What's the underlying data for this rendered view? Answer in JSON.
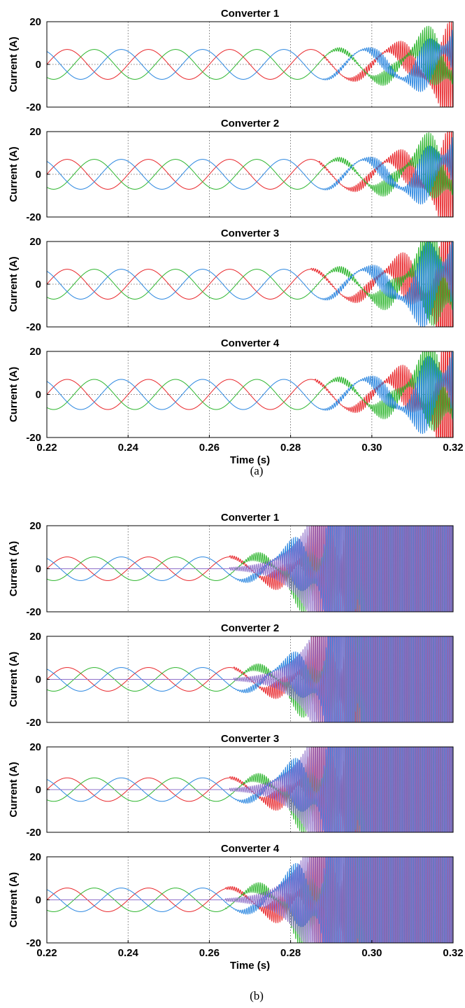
{
  "chart_data": [
    {
      "type": "line",
      "caption": "(a)",
      "title": "Converter 1",
      "xlabel": "",
      "ylabel": "Current (A)",
      "xlim": [
        0.22,
        0.32
      ],
      "ylim": [
        -20,
        20
      ],
      "xticks": [],
      "yticks": [
        "20",
        "0",
        "-20"
      ],
      "grid_x": [
        0.24,
        0.26,
        0.28,
        0.3
      ],
      "zero_line": true,
      "series": [
        {
          "color": "#e8262a",
          "amp": 7,
          "phase_deg": 0,
          "instab_start": 0.288,
          "instab_tau": 0.0085,
          "ripple_freq": 2000
        },
        {
          "color": "#2db52d",
          "amp": 7,
          "phase_deg": -120,
          "instab_start": 0.288,
          "instab_tau": 0.0085,
          "ripple_freq": 2000
        },
        {
          "color": "#2a86e0",
          "amp": 7,
          "phase_deg": 120,
          "instab_start": 0.288,
          "instab_tau": 0.0085,
          "ripple_freq": 2000
        }
      ]
    },
    {
      "type": "line",
      "title": "Converter 2",
      "xlabel": "",
      "ylabel": "Current (A)",
      "xlim": [
        0.22,
        0.32
      ],
      "ylim": [
        -20,
        20
      ],
      "xticks": [],
      "yticks": [
        "20",
        "0",
        "-20"
      ],
      "grid_x": [
        0.24,
        0.26,
        0.28,
        0.3
      ],
      "zero_line": true,
      "series": [
        {
          "color": "#e8262a",
          "amp": 7,
          "phase_deg": 0,
          "instab_start": 0.287,
          "instab_tau": 0.0085,
          "ripple_freq": 2000
        },
        {
          "color": "#2db52d",
          "amp": 7,
          "phase_deg": -120,
          "instab_start": 0.287,
          "instab_tau": 0.0085,
          "ripple_freq": 2000
        },
        {
          "color": "#2a86e0",
          "amp": 7,
          "phase_deg": 120,
          "instab_start": 0.287,
          "instab_tau": 0.0085,
          "ripple_freq": 2000
        }
      ]
    },
    {
      "type": "line",
      "title": "Converter 3",
      "xlabel": "",
      "ylabel": "Current (A)",
      "xlim": [
        0.22,
        0.32
      ],
      "ylim": [
        -20,
        20
      ],
      "xticks": [],
      "yticks": [
        "20",
        "0",
        "-20"
      ],
      "grid_x": [
        0.24,
        0.26,
        0.28,
        0.3
      ],
      "zero_line": true,
      "series": [
        {
          "color": "#e8262a",
          "amp": 7,
          "phase_deg": 0,
          "instab_start": 0.285,
          "instab_tau": 0.008,
          "ripple_freq": 2000
        },
        {
          "color": "#2db52d",
          "amp": 7,
          "phase_deg": -120,
          "instab_start": 0.285,
          "instab_tau": 0.008,
          "ripple_freq": 2000
        },
        {
          "color": "#2a86e0",
          "amp": 7,
          "phase_deg": 120,
          "instab_start": 0.285,
          "instab_tau": 0.008,
          "ripple_freq": 2000
        }
      ]
    },
    {
      "type": "line",
      "title": "Converter 4",
      "xlabel": "Time (s)",
      "ylabel": "Current (A)",
      "xlim": [
        0.22,
        0.32
      ],
      "ylim": [
        -20,
        20
      ],
      "xticks": [
        "0.22",
        "0.24",
        "0.26",
        "0.28",
        "0.30",
        "0.32"
      ],
      "yticks": [
        "20",
        "0",
        "-20"
      ],
      "grid_x": [
        0.24,
        0.26,
        0.28,
        0.3
      ],
      "zero_line": true,
      "series": [
        {
          "color": "#e8262a",
          "amp": 7,
          "phase_deg": 0,
          "instab_start": 0.286,
          "instab_tau": 0.008,
          "ripple_freq": 2000
        },
        {
          "color": "#2db52d",
          "amp": 7,
          "phase_deg": -120,
          "instab_start": 0.286,
          "instab_tau": 0.008,
          "ripple_freq": 2000
        },
        {
          "color": "#2a86e0",
          "amp": 7,
          "phase_deg": 120,
          "instab_start": 0.286,
          "instab_tau": 0.008,
          "ripple_freq": 2000
        }
      ]
    },
    {
      "type": "line",
      "caption": "(b)",
      "title": "Converter 1",
      "xlabel": "",
      "ylabel": "Current (A)",
      "xlim": [
        0.22,
        0.32
      ],
      "ylim": [
        -20,
        20
      ],
      "xticks": [],
      "yticks": [
        "20",
        "0",
        "-20"
      ],
      "grid_x": [
        0.24,
        0.26,
        0.28,
        0.3
      ],
      "zero_line": true,
      "series": [
        {
          "color": "#e8262a",
          "amp": 5.5,
          "phase_deg": 0,
          "instab_start": 0.265,
          "instab_tau": 0.0055,
          "ripple_freq": 2000
        },
        {
          "color": "#2db52d",
          "amp": 5.5,
          "phase_deg": -120,
          "instab_start": 0.265,
          "instab_tau": 0.0055,
          "ripple_freq": 2000
        },
        {
          "color": "#2a86e0",
          "amp": 5.5,
          "phase_deg": 120,
          "instab_start": 0.265,
          "instab_tau": 0.0055,
          "ripple_freq": 2000
        },
        {
          "color": "#8e6fc9",
          "amp": 0,
          "phase_deg": 60,
          "instab_start": 0.265,
          "instab_tau": 0.0055,
          "ripple_freq": 2000
        }
      ]
    },
    {
      "type": "line",
      "title": "Converter 2",
      "xlabel": "",
      "ylabel": "Current (A)",
      "xlim": [
        0.22,
        0.32
      ],
      "ylim": [
        -20,
        20
      ],
      "xticks": [],
      "yticks": [
        "20",
        "0",
        "-20"
      ],
      "grid_x": [
        0.24,
        0.26,
        0.28,
        0.3
      ],
      "zero_line": true,
      "series": [
        {
          "color": "#e8262a",
          "amp": 5.5,
          "phase_deg": 0,
          "instab_start": 0.266,
          "instab_tau": 0.0055,
          "ripple_freq": 2000
        },
        {
          "color": "#2db52d",
          "amp": 5.5,
          "phase_deg": -120,
          "instab_start": 0.266,
          "instab_tau": 0.0055,
          "ripple_freq": 2000
        },
        {
          "color": "#2a86e0",
          "amp": 5.5,
          "phase_deg": 120,
          "instab_start": 0.266,
          "instab_tau": 0.0055,
          "ripple_freq": 2000
        },
        {
          "color": "#8e6fc9",
          "amp": 0,
          "phase_deg": 60,
          "instab_start": 0.266,
          "instab_tau": 0.0055,
          "ripple_freq": 2000
        }
      ]
    },
    {
      "type": "line",
      "title": "Converter 3",
      "xlabel": "",
      "ylabel": "Current (A)",
      "xlim": [
        0.22,
        0.32
      ],
      "ylim": [
        -20,
        20
      ],
      "xticks": [],
      "yticks": [
        "20",
        "0",
        "-20"
      ],
      "grid_x": [
        0.24,
        0.26,
        0.28,
        0.3
      ],
      "zero_line": true,
      "series": [
        {
          "color": "#e8262a",
          "amp": 5.5,
          "phase_deg": 0,
          "instab_start": 0.265,
          "instab_tau": 0.0055,
          "ripple_freq": 2000
        },
        {
          "color": "#2db52d",
          "amp": 5.5,
          "phase_deg": -120,
          "instab_start": 0.265,
          "instab_tau": 0.0055,
          "ripple_freq": 2000
        },
        {
          "color": "#2a86e0",
          "amp": 5.5,
          "phase_deg": 120,
          "instab_start": 0.265,
          "instab_tau": 0.0055,
          "ripple_freq": 2000
        },
        {
          "color": "#8e6fc9",
          "amp": 0,
          "phase_deg": 60,
          "instab_start": 0.265,
          "instab_tau": 0.0055,
          "ripple_freq": 2000
        }
      ]
    },
    {
      "type": "line",
      "caption": "",
      "title": "Converter 4",
      "xlabel": "Time (s)",
      "ylabel": "Current (A)",
      "xlim": [
        0.22,
        0.32
      ],
      "ylim": [
        -20,
        20
      ],
      "xticks": [
        "0.22",
        "0.24",
        "0.26",
        "0.28",
        "0.30",
        "0.32"
      ],
      "yticks": [
        "20",
        "0",
        "-20"
      ],
      "grid_x": [
        0.24,
        0.26,
        0.28,
        0.3
      ],
      "zero_line": true,
      "series": [
        {
          "color": "#e8262a",
          "amp": 5.5,
          "phase_deg": 0,
          "instab_start": 0.264,
          "instab_tau": 0.0055,
          "ripple_freq": 2000
        },
        {
          "color": "#2db52d",
          "amp": 5.5,
          "phase_deg": -120,
          "instab_start": 0.264,
          "instab_tau": 0.0055,
          "ripple_freq": 2000
        },
        {
          "color": "#2a86e0",
          "amp": 5.5,
          "phase_deg": 120,
          "instab_start": 0.264,
          "instab_tau": 0.0055,
          "ripple_freq": 2000
        },
        {
          "color": "#8e6fc9",
          "amp": 0,
          "phase_deg": 60,
          "instab_start": 0.264,
          "instab_tau": 0.0055,
          "ripple_freq": 2000
        }
      ]
    }
  ],
  "captions": {
    "a": "(a)",
    "b": "(b)"
  },
  "fundamental_hz": 50
}
